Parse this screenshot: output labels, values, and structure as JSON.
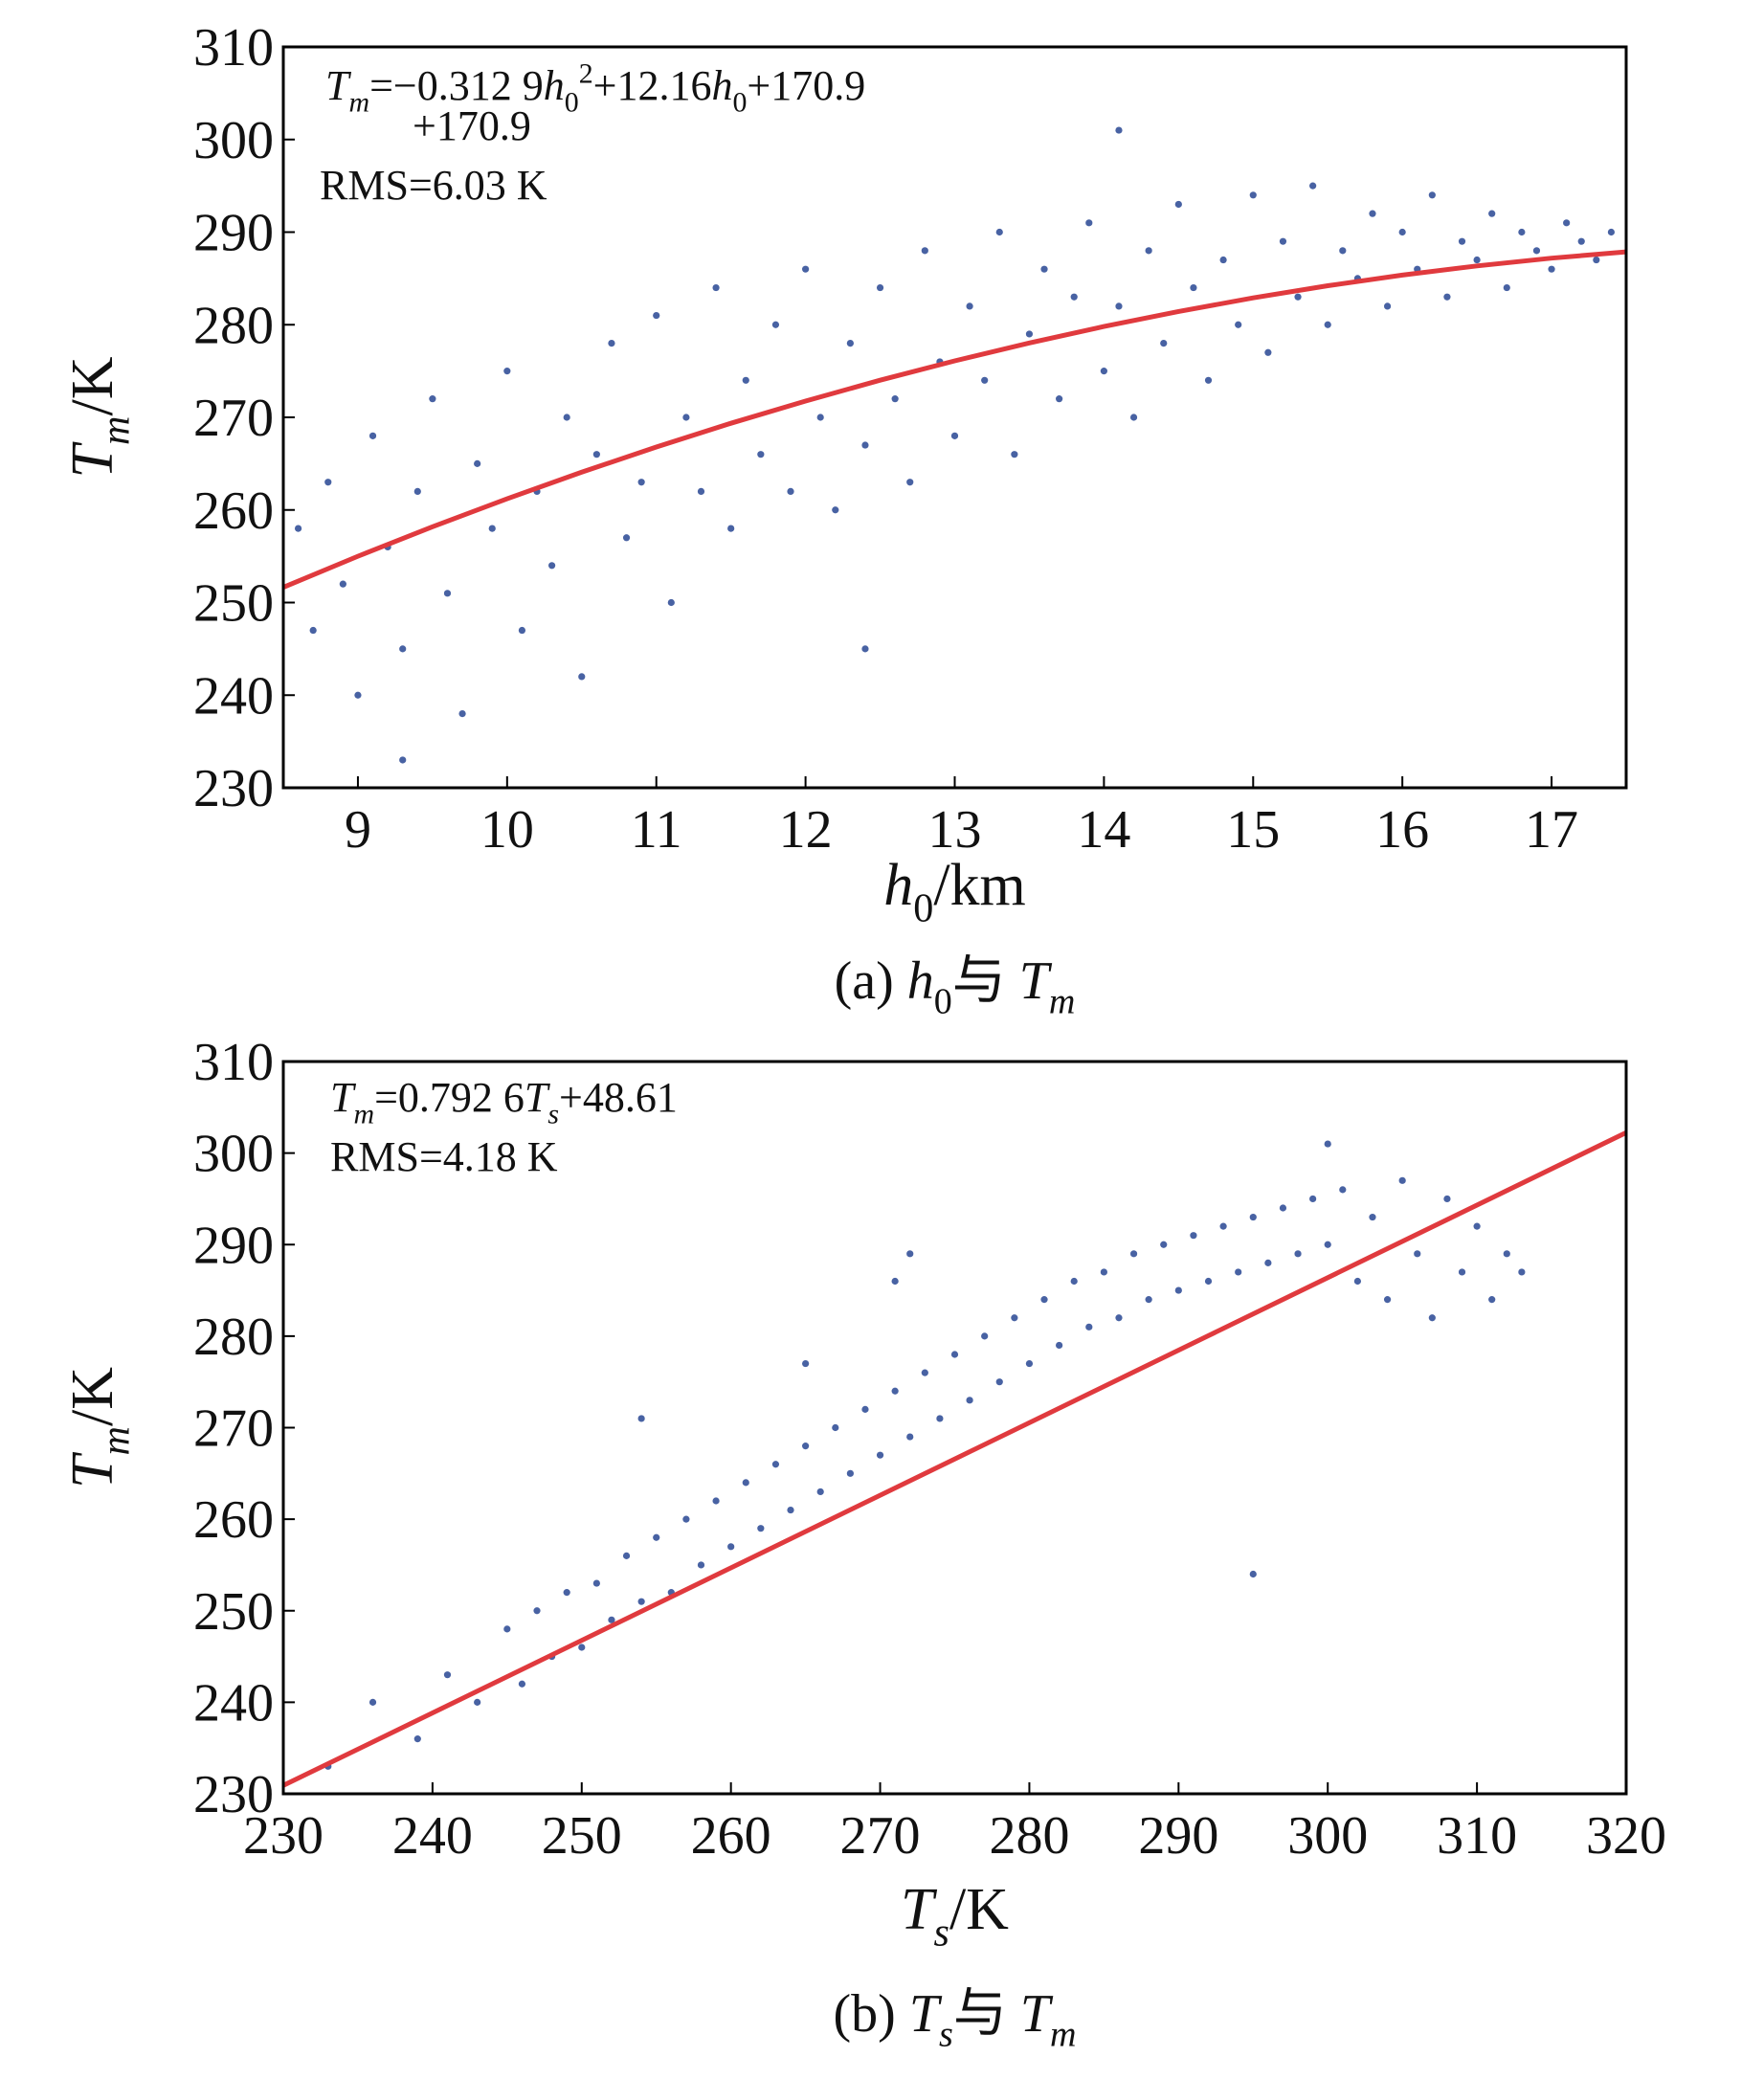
{
  "chart_data": [
    {
      "type": "scatter",
      "equation": [
        {
          "text": "T",
          "style": "i"
        },
        {
          "text": "m",
          "style": "si"
        },
        {
          "text": "=−0.312 9",
          "style": "n"
        },
        {
          "text": "h",
          "style": "i"
        },
        {
          "text": "0",
          "style": "s"
        },
        {
          "text": "2",
          "style": "p"
        },
        {
          "text": "+12.16",
          "style": "n"
        },
        {
          "text": "h",
          "style": "i"
        },
        {
          "text": "0",
          "style": "s"
        },
        {
          "text": "+170.9",
          "style": "n"
        }
      ],
      "equation_cont": "+170.9",
      "rms": "RMS=6.03 K",
      "xlabel": [
        {
          "text": "h",
          "style": "i"
        },
        {
          "text": "0",
          "style": "s"
        },
        {
          "text": "/km",
          "style": "n"
        }
      ],
      "ylabel": [
        {
          "text": "T",
          "style": "i"
        },
        {
          "text": "m",
          "style": "si"
        },
        {
          "text": "/K",
          "style": "n"
        }
      ],
      "caption": [
        {
          "text": "(a) ",
          "style": "n"
        },
        {
          "text": "h",
          "style": "i"
        },
        {
          "text": "0",
          "style": "s"
        },
        {
          "text": "与 ",
          "style": "n"
        },
        {
          "text": "T",
          "style": "i"
        },
        {
          "text": "m",
          "style": "si"
        }
      ],
      "xlim": [
        8.5,
        17.5
      ],
      "xticks": [
        9,
        10,
        11,
        12,
        13,
        14,
        15,
        16,
        17
      ],
      "ylim": [
        230,
        310
      ],
      "yticks": [
        230,
        240,
        250,
        260,
        270,
        280,
        290,
        300,
        310
      ],
      "series": [
        {
          "type": "scatter",
          "color": "#4862a3",
          "x": [
            8.6,
            8.7,
            8.8,
            8.9,
            9.0,
            9.1,
            9.2,
            9.3,
            9.4,
            9.5,
            9.6,
            9.7,
            9.8,
            9.9,
            10.0,
            10.1,
            10.2,
            10.3,
            10.4,
            10.5,
            10.6,
            10.7,
            10.8,
            10.9,
            11.0,
            11.1,
            11.2,
            11.3,
            11.4,
            11.5,
            11.6,
            11.7,
            11.8,
            11.9,
            12.0,
            12.1,
            12.2,
            12.3,
            12.4,
            12.5,
            12.6,
            12.7,
            12.8,
            12.9,
            13.0,
            13.1,
            13.2,
            13.3,
            13.4,
            13.5,
            13.6,
            13.7,
            13.8,
            13.9,
            14.0,
            14.1,
            14.2,
            14.3,
            14.4,
            14.5,
            14.6,
            14.7,
            14.8,
            14.9,
            15.0,
            15.1,
            15.2,
            15.3,
            15.4,
            15.5,
            15.6,
            15.7,
            15.8,
            15.9,
            16.0,
            16.1,
            16.2,
            16.3,
            16.4,
            16.5,
            16.6,
            16.7,
            16.8,
            16.9,
            17.0,
            17.1,
            17.2,
            17.3,
            17.4,
            14.1,
            9.3,
            12.4
          ],
          "y": [
            258,
            247,
            263,
            252,
            240,
            268,
            256,
            245,
            262,
            272,
            251,
            238,
            265,
            258,
            275,
            247,
            262,
            254,
            270,
            242,
            266,
            278,
            257,
            263,
            281,
            250,
            270,
            262,
            284,
            258,
            274,
            266,
            280,
            262,
            286,
            270,
            260,
            278,
            267,
            284,
            272,
            263,
            288,
            276,
            268,
            282,
            274,
            290,
            266,
            279,
            286,
            272,
            283,
            291,
            275,
            282,
            270,
            288,
            278,
            293,
            284,
            274,
            287,
            280,
            294,
            277,
            289,
            283,
            295,
            280,
            288,
            285,
            292,
            282,
            290,
            286,
            294,
            283,
            289,
            287,
            292,
            284,
            290,
            288,
            286,
            291,
            289,
            287,
            290,
            301,
            233,
            245
          ]
        },
        {
          "type": "line",
          "color": "#e03a3e",
          "x": [
            8.5,
            9,
            9.5,
            10,
            10.5,
            11,
            11.5,
            12,
            12.5,
            13,
            13.5,
            14,
            14.5,
            15,
            15.5,
            16,
            16.5,
            17,
            17.5
          ],
          "y": [
            251.65,
            255.0,
            258.18,
            261.21,
            264.08,
            266.8,
            269.36,
            271.76,
            274.01,
            276.1,
            278.03,
            279.81,
            281.43,
            282.9,
            284.21,
            285.36,
            286.35,
            287.19,
            287.87
          ]
        }
      ]
    },
    {
      "type": "scatter",
      "equation": [
        {
          "text": "T",
          "style": "i"
        },
        {
          "text": "m",
          "style": "si"
        },
        {
          "text": "=0.792 6",
          "style": "n"
        },
        {
          "text": "T",
          "style": "i"
        },
        {
          "text": "s",
          "style": "si"
        },
        {
          "text": "+48.61",
          "style": "n"
        }
      ],
      "rms": "RMS=4.18 K",
      "xlabel": [
        {
          "text": "T",
          "style": "i"
        },
        {
          "text": "s",
          "style": "si"
        },
        {
          "text": "/K",
          "style": "n"
        }
      ],
      "ylabel": [
        {
          "text": "T",
          "style": "i"
        },
        {
          "text": "m",
          "style": "si"
        },
        {
          "text": "/K",
          "style": "n"
        }
      ],
      "caption": [
        {
          "text": "(b) ",
          "style": "n"
        },
        {
          "text": "T",
          "style": "i"
        },
        {
          "text": "s",
          "style": "si"
        },
        {
          "text": "与 ",
          "style": "n"
        },
        {
          "text": "T",
          "style": "i"
        },
        {
          "text": "m",
          "style": "si"
        }
      ],
      "xlim": [
        230,
        320
      ],
      "xticks": [
        230,
        240,
        250,
        260,
        270,
        280,
        290,
        300,
        310,
        320
      ],
      "ylim": [
        230,
        310
      ],
      "yticks": [
        230,
        240,
        250,
        260,
        270,
        280,
        290,
        300,
        310
      ],
      "series": [
        {
          "type": "scatter",
          "color": "#4862a3",
          "x": [
            233,
            236,
            239,
            241,
            243,
            245,
            246,
            247,
            248,
            249,
            250,
            251,
            252,
            253,
            254,
            255,
            256,
            257,
            258,
            259,
            260,
            261,
            262,
            263,
            264,
            265,
            266,
            267,
            268,
            269,
            270,
            271,
            272,
            273,
            274,
            275,
            276,
            277,
            278,
            279,
            280,
            281,
            282,
            283,
            284,
            285,
            286,
            287,
            288,
            289,
            290,
            291,
            292,
            293,
            294,
            295,
            296,
            297,
            298,
            299,
            300,
            301,
            302,
            303,
            304,
            305,
            306,
            307,
            308,
            309,
            310,
            311,
            312,
            313,
            300,
            272,
            271,
            295,
            254,
            265
          ],
          "y": [
            233,
            240,
            236,
            243,
            240,
            248,
            242,
            250,
            245,
            252,
            246,
            253,
            249,
            256,
            251,
            258,
            252,
            260,
            255,
            262,
            257,
            264,
            259,
            266,
            261,
            268,
            263,
            270,
            265,
            272,
            267,
            274,
            269,
            276,
            271,
            278,
            273,
            280,
            275,
            282,
            277,
            284,
            279,
            286,
            281,
            287,
            282,
            289,
            284,
            290,
            285,
            291,
            286,
            292,
            287,
            293,
            288,
            294,
            289,
            295,
            290,
            296,
            286,
            293,
            284,
            297,
            289,
            282,
            295,
            287,
            292,
            284,
            289,
            287,
            301,
            289,
            286,
            254,
            271,
            277
          ]
        },
        {
          "type": "line",
          "color": "#e03a3e",
          "x": [
            230,
            320
          ],
          "y": [
            230.91,
            302.24
          ]
        }
      ]
    }
  ]
}
